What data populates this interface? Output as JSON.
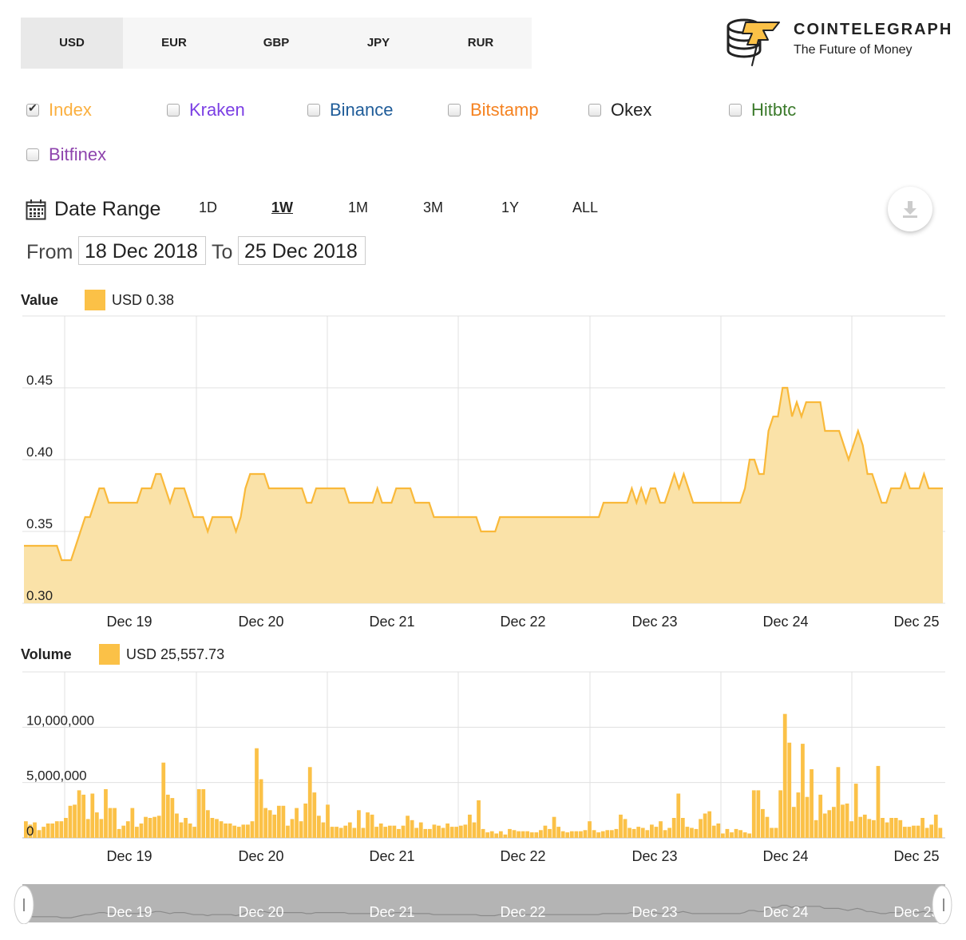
{
  "currencies": [
    {
      "label": "USD",
      "active": true
    },
    {
      "label": "EUR",
      "active": false
    },
    {
      "label": "GBP",
      "active": false
    },
    {
      "label": "JPY",
      "active": false
    },
    {
      "label": "RUR",
      "active": false
    }
  ],
  "logo": {
    "name": "COINTELEGRAPH",
    "tagline": "The Future of Money"
  },
  "exchanges": [
    {
      "label": "Index",
      "checked": true,
      "color": "#fbb040"
    },
    {
      "label": "Kraken",
      "checked": false,
      "color": "#7b3fe4"
    },
    {
      "label": "Binance",
      "checked": false,
      "color": "#1f5c99"
    },
    {
      "label": "Bitstamp",
      "checked": false,
      "color": "#f58220"
    },
    {
      "label": "Okex",
      "checked": false,
      "color": "#222222"
    },
    {
      "label": "Hitbtc",
      "checked": false,
      "color": "#3b7a2b"
    },
    {
      "label": "Bitfinex",
      "checked": false,
      "color": "#8e44ad"
    }
  ],
  "date_range": {
    "label": "Date Range",
    "ranges": [
      {
        "label": "1D",
        "active": false
      },
      {
        "label": "1W",
        "active": true
      },
      {
        "label": "1M",
        "active": false
      },
      {
        "label": "3M",
        "active": false
      },
      {
        "label": "1Y",
        "active": false
      },
      {
        "label": "ALL",
        "active": false
      }
    ],
    "from_label": "From",
    "from_value": "18 Dec 2018",
    "to_label": "To",
    "to_value": "25 Dec 2018"
  },
  "icons": {
    "calendar": "calendar-icon",
    "download": "download-icon",
    "logo": "coin-stack-lightning-icon"
  },
  "colors": {
    "accent": "#fbc147",
    "line": "#f9b93a",
    "fill": "#fae2a8",
    "grid": "#e0e0e0",
    "navigator": "#b4b4b4"
  },
  "value_chart": {
    "title": "Value",
    "legend": "USD 0.38"
  },
  "volume_chart": {
    "title": "Volume",
    "legend": "USD 25,557.73"
  },
  "chart_data": [
    {
      "type": "area",
      "title": "Value",
      "legend": "USD 0.38",
      "x_start": "2018-12-18",
      "x_step_hours": 1,
      "xticks": [
        "Dec 19",
        "Dec 20",
        "Dec 21",
        "Dec 22",
        "Dec 23",
        "Dec 24",
        "Dec 25"
      ],
      "yticks": [
        "0.30",
        "0.35",
        "0.40",
        "0.45"
      ],
      "ylim": [
        0.3,
        0.5
      ],
      "grid": true,
      "values": [
        0.34,
        0.34,
        0.34,
        0.34,
        0.34,
        0.34,
        0.34,
        0.34,
        0.33,
        0.33,
        0.33,
        0.34,
        0.35,
        0.36,
        0.36,
        0.37,
        0.38,
        0.38,
        0.37,
        0.37,
        0.37,
        0.37,
        0.37,
        0.37,
        0.37,
        0.38,
        0.38,
        0.38,
        0.39,
        0.39,
        0.38,
        0.37,
        0.38,
        0.38,
        0.38,
        0.37,
        0.36,
        0.36,
        0.36,
        0.35,
        0.36,
        0.36,
        0.36,
        0.36,
        0.36,
        0.35,
        0.36,
        0.38,
        0.39,
        0.39,
        0.39,
        0.39,
        0.38,
        0.38,
        0.38,
        0.38,
        0.38,
        0.38,
        0.38,
        0.38,
        0.37,
        0.37,
        0.38,
        0.38,
        0.38,
        0.38,
        0.38,
        0.38,
        0.38,
        0.37,
        0.37,
        0.37,
        0.37,
        0.37,
        0.37,
        0.38,
        0.37,
        0.37,
        0.37,
        0.38,
        0.38,
        0.38,
        0.38,
        0.37,
        0.37,
        0.37,
        0.37,
        0.36,
        0.36,
        0.36,
        0.36,
        0.36,
        0.36,
        0.36,
        0.36,
        0.36,
        0.36,
        0.35,
        0.35,
        0.35,
        0.35,
        0.36,
        0.36,
        0.36,
        0.36,
        0.36,
        0.36,
        0.36,
        0.36,
        0.36,
        0.36,
        0.36,
        0.36,
        0.36,
        0.36,
        0.36,
        0.36,
        0.36,
        0.36,
        0.36,
        0.36,
        0.36,
        0.36,
        0.37,
        0.37,
        0.37,
        0.37,
        0.37,
        0.37,
        0.38,
        0.37,
        0.38,
        0.37,
        0.38,
        0.38,
        0.37,
        0.37,
        0.38,
        0.39,
        0.38,
        0.39,
        0.38,
        0.37,
        0.37,
        0.37,
        0.37,
        0.37,
        0.37,
        0.37,
        0.37,
        0.37,
        0.37,
        0.37,
        0.38,
        0.4,
        0.4,
        0.39,
        0.39,
        0.42,
        0.43,
        0.43,
        0.45,
        0.45,
        0.43,
        0.44,
        0.43,
        0.44,
        0.44,
        0.44,
        0.44,
        0.42,
        0.42,
        0.42,
        0.42,
        0.41,
        0.4,
        0.41,
        0.42,
        0.41,
        0.39,
        0.39,
        0.38,
        0.37,
        0.37,
        0.38,
        0.38,
        0.38,
        0.39,
        0.38,
        0.38,
        0.38,
        0.39,
        0.38,
        0.38,
        0.38,
        0.38
      ]
    },
    {
      "type": "bar",
      "title": "Volume",
      "legend": "USD 25,557.73",
      "x_start": "2018-12-18",
      "x_step_hours": 1,
      "xticks": [
        "Dec 19",
        "Dec 20",
        "Dec 21",
        "Dec 22",
        "Dec 23",
        "Dec 24",
        "Dec 25"
      ],
      "yticks": [
        "0",
        "5,000,000",
        "10,000,000"
      ],
      "ylim": [
        0,
        15000000
      ],
      "grid": true,
      "values": [
        1500000,
        1200000,
        1400000,
        700000,
        1000000,
        1300000,
        1300000,
        1500000,
        1500000,
        1800000,
        2900000,
        3000000,
        4300000,
        3900000,
        1700000,
        4000000,
        2300000,
        1700000,
        4400000,
        2700000,
        2700000,
        800000,
        1100000,
        1500000,
        2700000,
        1000000,
        1300000,
        1900000,
        1800000,
        1900000,
        2000000,
        6800000,
        3900000,
        3600000,
        2200000,
        1400000,
        1800000,
        1300000,
        1000000,
        4400000,
        4400000,
        2500000,
        1800000,
        1700000,
        1500000,
        1300000,
        1300000,
        1100000,
        1000000,
        1200000,
        1200000,
        1500000,
        8100000,
        5300000,
        2700000,
        2500000,
        2100000,
        2900000,
        2900000,
        1100000,
        1700000,
        2700000,
        1500000,
        3100000,
        6400000,
        4100000,
        2000000,
        1400000,
        3000000,
        1000000,
        1000000,
        900000,
        1100000,
        1400000,
        900000,
        2500000,
        900000,
        2300000,
        2100000,
        1000000,
        1300000,
        1000000,
        1100000,
        1100000,
        800000,
        1100000,
        2000000,
        1600000,
        900000,
        1400000,
        800000,
        800000,
        1200000,
        1100000,
        900000,
        1300000,
        1000000,
        1000000,
        1100000,
        1200000,
        2100000,
        1400000,
        3400000,
        800000,
        500000,
        600000,
        400000,
        600000,
        300000,
        800000,
        700000,
        600000,
        600000,
        600000,
        500000,
        500000,
        700000,
        1100000,
        800000,
        1900000,
        1000000,
        600000,
        500000,
        600000,
        600000,
        600000,
        700000,
        1500000,
        700000,
        500000,
        600000,
        700000,
        700000,
        800000,
        2100000,
        1700000,
        900000,
        800000,
        1000000,
        900000,
        700000,
        1200000,
        1000000,
        1500000,
        700000,
        900000,
        1800000,
        4000000,
        1800000,
        1000000,
        900000,
        800000,
        1700000,
        2200000,
        2400000,
        1100000,
        1300000,
        400000,
        800000,
        500000,
        800000,
        700000,
        500000,
        400000,
        4300000,
        4300000,
        2600000,
        1900000,
        900000,
        900000,
        4300000,
        11200000,
        8600000,
        2800000,
        4100000,
        8500000,
        3700000,
        6200000,
        1600000,
        3900000,
        2200000,
        2500000,
        2800000,
        6400000,
        3000000,
        3100000,
        1500000,
        4900000,
        1900000,
        2100000,
        1700000,
        1600000,
        6500000,
        1800000,
        1400000,
        1800000,
        1800000,
        1600000,
        1000000,
        1000000,
        1100000,
        1100000,
        1800000,
        900000,
        1200000,
        2100000,
        900000
      ]
    }
  ]
}
